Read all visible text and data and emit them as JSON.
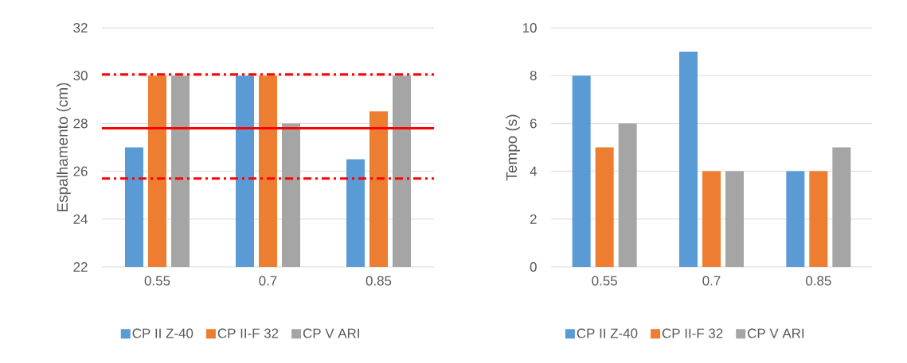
{
  "chart_data": [
    {
      "type": "bar",
      "ylabel": "Espalhamento (cm)",
      "categories": [
        "0.55",
        "0.7",
        "0.85"
      ],
      "series": [
        {
          "name": "CP II Z-40",
          "color": "#5b9bd5",
          "values": [
            27,
            30,
            26.5
          ]
        },
        {
          "name": "CP II-F 32",
          "color": "#ed7d31",
          "values": [
            30,
            30,
            28.5
          ]
        },
        {
          "name": "CP V ARI",
          "color": "#a5a5a5",
          "values": [
            30,
            28,
            30
          ]
        }
      ],
      "ylim": [
        22,
        32
      ],
      "yticks": [
        22,
        24,
        26,
        28,
        30,
        32
      ],
      "grid": "y",
      "legend": "bottom",
      "ref_lines": [
        {
          "axis": "y",
          "value": 30.05,
          "color": "#ff0000",
          "line_style": "dashed"
        },
        {
          "axis": "y",
          "value": 27.8,
          "color": "#ff0000",
          "line_style": "solid"
        },
        {
          "axis": "y",
          "value": 25.7,
          "color": "#ff0000",
          "line_style": "dashed"
        }
      ]
    },
    {
      "type": "bar",
      "ylabel": "Tempo (s)",
      "categories": [
        "0.55",
        "0.7",
        "0.85"
      ],
      "series": [
        {
          "name": "CP II Z-40",
          "color": "#5b9bd5",
          "values": [
            8,
            9,
            4
          ]
        },
        {
          "name": "CP II-F 32",
          "color": "#ed7d31",
          "values": [
            5,
            4,
            4
          ]
        },
        {
          "name": "CP V ARI",
          "color": "#a5a5a5",
          "values": [
            6,
            4,
            5
          ]
        }
      ],
      "ylim": [
        0,
        10
      ],
      "yticks": [
        0,
        2,
        4,
        6,
        8,
        10
      ],
      "grid": "y",
      "legend": "bottom"
    }
  ]
}
